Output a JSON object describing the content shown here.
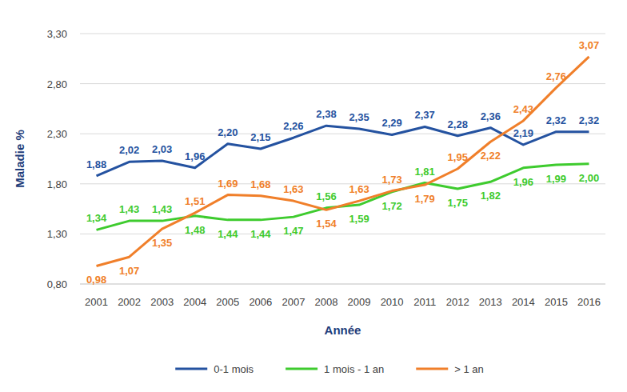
{
  "chart_data": {
    "type": "line",
    "x_label": "Année",
    "y_label": "Maladie %",
    "categories": [
      "2001",
      "2002",
      "2003",
      "2004",
      "2005",
      "2006",
      "2007",
      "2008",
      "2009",
      "2010",
      "2011",
      "2012",
      "2013",
      "2014",
      "2015",
      "2016"
    ],
    "series": [
      {
        "name": "0-1 mois",
        "color": "#2452a0",
        "values": [
          1.88,
          2.02,
          2.03,
          1.96,
          2.2,
          2.15,
          2.26,
          2.38,
          2.35,
          2.29,
          2.37,
          2.28,
          2.36,
          2.19,
          2.32,
          2.32
        ],
        "value_labels": [
          "1,88",
          "2,02",
          "2,03",
          "1,96",
          "2,20",
          "2,15",
          "2,26",
          "2,38",
          "2,35",
          "2,29",
          "2,37",
          "2,28",
          "2,36",
          "2,19",
          "2,32",
          "2,32"
        ]
      },
      {
        "name": "1 mois - 1 an",
        "color": "#3ecb2e",
        "values": [
          1.34,
          1.43,
          1.43,
          1.48,
          1.44,
          1.44,
          1.47,
          1.56,
          1.59,
          1.72,
          1.81,
          1.75,
          1.82,
          1.96,
          1.99,
          2.0
        ],
        "value_labels": [
          "1,34",
          "1,43",
          "1,43",
          "1,48",
          "1,44",
          "1,44",
          "1,47",
          "1,56",
          "1,59",
          "1,72",
          "1,81",
          "1,75",
          "1,82",
          "1,96",
          "1,99",
          "2,00"
        ]
      },
      {
        "name": "> 1 an",
        "color": "#f07f2a",
        "values": [
          0.98,
          1.07,
          1.35,
          1.51,
          1.69,
          1.68,
          1.63,
          1.54,
          1.63,
          1.73,
          1.79,
          1.95,
          2.22,
          2.43,
          2.76,
          3.07
        ],
        "value_labels": [
          "0,98",
          "1,07",
          "1,35",
          "1,51",
          "1,69",
          "1,68",
          "1,63",
          "1,54",
          "1,63",
          "1,73",
          "1,79",
          "1,95",
          "2,22",
          "2,43",
          "2,76",
          "3,07"
        ]
      }
    ],
    "ylim": [
      0.8,
      3.3
    ],
    "yticks": [
      {
        "value": 0.8,
        "label": "0,80"
      },
      {
        "value": 1.3,
        "label": "1,30"
      },
      {
        "value": 1.8,
        "label": "1,80"
      },
      {
        "value": 2.3,
        "label": "2,30"
      },
      {
        "value": 2.8,
        "label": "2,80"
      },
      {
        "value": 3.3,
        "label": "3,30"
      }
    ],
    "grid": true,
    "legend": "bottom",
    "data_labels": true
  }
}
